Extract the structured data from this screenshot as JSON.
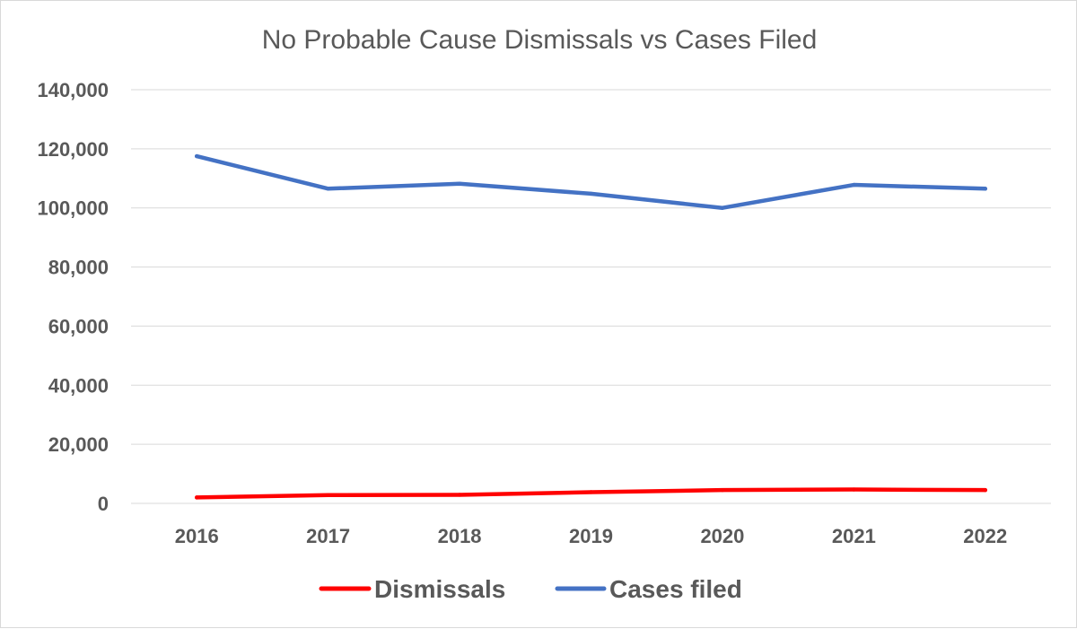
{
  "chart_data": {
    "type": "line",
    "title": "No Probable Cause Dismissals vs Cases Filed",
    "xlabel": "",
    "ylabel": "",
    "categories": [
      "2016",
      "2017",
      "2018",
      "2019",
      "2020",
      "2021",
      "2022"
    ],
    "ylim": [
      0,
      140000
    ],
    "yticks": [
      0,
      20000,
      40000,
      60000,
      80000,
      100000,
      120000,
      140000
    ],
    "ytick_labels": [
      "0",
      "20,000",
      "40,000",
      "60,000",
      "80,000",
      "100,000",
      "120,000",
      "140,000"
    ],
    "grid": true,
    "legend_position": "bottom",
    "series": [
      {
        "name": "Dismissals",
        "color": "#ff0000",
        "values": [
          2000,
          2800,
          2900,
          3800,
          4500,
          4700,
          4500
        ]
      },
      {
        "name": "Cases filed",
        "color": "#4472c4",
        "values": [
          117500,
          106500,
          108200,
          104800,
          100000,
          107800,
          106500
        ]
      }
    ]
  }
}
